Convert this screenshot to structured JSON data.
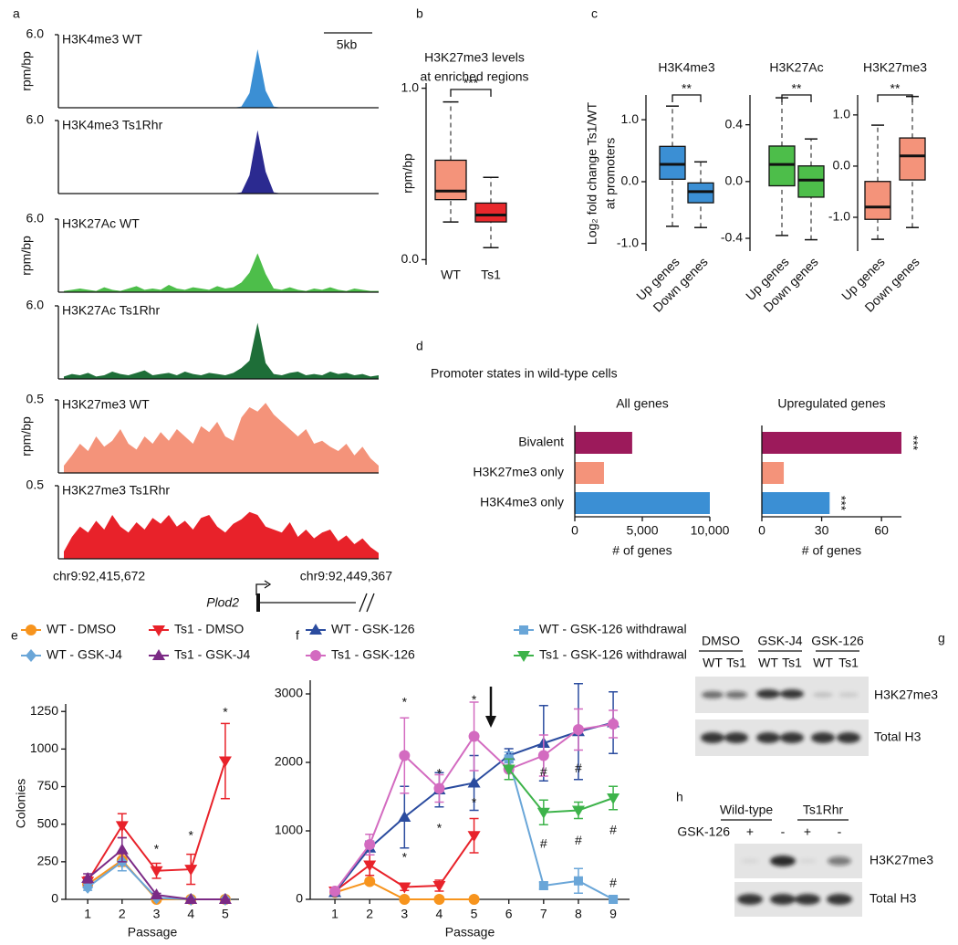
{
  "panel_labels": [
    "a",
    "b",
    "c",
    "d",
    "e",
    "f",
    "g",
    "h"
  ],
  "chart_data": [
    {
      "type": "tracks",
      "scale_bar": "5kb",
      "x_start": "chr9:92,415,672",
      "x_end": "chr9:92,449,367",
      "gene": "Plod2",
      "tracks": [
        {
          "name": "H3K4me3 WT",
          "color": "#3b8fd4",
          "ylabel": "rpm/bp",
          "ylim": [
            0,
            6
          ],
          "yticks": [
            {
              "value": 6,
              "label": "6.0"
            }
          ],
          "values": [
            0,
            0,
            0,
            0,
            0,
            0,
            0,
            0,
            0,
            0,
            0,
            0,
            0,
            0,
            0,
            0,
            0,
            0,
            0,
            0,
            0,
            0,
            0.1,
            1.2,
            4.8,
            1.4,
            0.1,
            0,
            0,
            0,
            0,
            0,
            0,
            0,
            0,
            0,
            0,
            0,
            0,
            0
          ]
        },
        {
          "name": "H3K4me3 Ts1Rhr",
          "color": "#2b2a90",
          "ylim": [
            0,
            6
          ],
          "yticks": [
            {
              "value": 6,
              "label": "6.0"
            }
          ],
          "values": [
            0,
            0,
            0,
            0,
            0,
            0,
            0,
            0,
            0,
            0,
            0,
            0,
            0,
            0,
            0,
            0,
            0,
            0,
            0,
            0,
            0,
            0,
            0.1,
            1.5,
            5.2,
            1.8,
            0.1,
            0,
            0,
            0,
            0,
            0,
            0,
            0,
            0,
            0,
            0,
            0,
            0,
            0
          ]
        },
        {
          "name": "H3K27Ac WT",
          "color": "#4dbe4a",
          "ylabel": "rpm/bp",
          "ylim": [
            0,
            6
          ],
          "yticks": [
            {
              "value": 6,
              "label": "6.0"
            }
          ],
          "values": [
            0.1,
            0.2,
            0.3,
            0.2,
            0.1,
            0.4,
            0.2,
            0.1,
            0.3,
            0.5,
            0.2,
            0.3,
            0.2,
            0.6,
            0.3,
            0.2,
            0.4,
            0.3,
            0.2,
            0.5,
            0.3,
            0.4,
            0.8,
            1.6,
            3.2,
            1.5,
            0.3,
            0.2,
            0.4,
            0.2,
            0.1,
            0.3,
            0.2,
            0.4,
            0.2,
            0.1,
            0.3,
            0.2,
            0.1,
            0.1
          ]
        },
        {
          "name": "H3K27Ac Ts1Rhr",
          "color": "#1e6e38",
          "ylim": [
            0,
            6
          ],
          "yticks": [
            {
              "value": 6,
              "label": "6.0"
            }
          ],
          "values": [
            0.2,
            0.4,
            0.3,
            0.5,
            0.2,
            0.3,
            0.6,
            0.4,
            0.3,
            0.5,
            0.7,
            0.3,
            0.4,
            0.5,
            0.3,
            0.6,
            0.4,
            0.3,
            0.5,
            0.4,
            0.3,
            0.5,
            0.9,
            1.5,
            4.6,
            1.3,
            0.4,
            0.3,
            0.5,
            0.6,
            0.3,
            0.4,
            0.3,
            0.6,
            0.4,
            0.5,
            0.3,
            0.4,
            0.2,
            0.3
          ]
        },
        {
          "name": "H3K27me3 WT",
          "color": "#f4937a",
          "ylabel": "rpm/bp",
          "ylim": [
            0,
            0.5
          ],
          "yticks": [
            0.5
          ],
          "values": [
            0.05,
            0.12,
            0.2,
            0.15,
            0.25,
            0.18,
            0.22,
            0.3,
            0.2,
            0.16,
            0.25,
            0.2,
            0.28,
            0.22,
            0.3,
            0.25,
            0.2,
            0.32,
            0.28,
            0.35,
            0.25,
            0.22,
            0.38,
            0.45,
            0.42,
            0.48,
            0.4,
            0.35,
            0.3,
            0.25,
            0.3,
            0.2,
            0.22,
            0.18,
            0.15,
            0.2,
            0.12,
            0.18,
            0.1,
            0.05
          ]
        },
        {
          "name": "H3K27me3 Ts1Rhr",
          "color": "#e8222a",
          "ylim": [
            0,
            0.5
          ],
          "yticks": [
            0.5
          ],
          "values": [
            0.05,
            0.15,
            0.22,
            0.18,
            0.26,
            0.2,
            0.3,
            0.22,
            0.18,
            0.25,
            0.2,
            0.28,
            0.24,
            0.3,
            0.22,
            0.26,
            0.2,
            0.28,
            0.3,
            0.22,
            0.18,
            0.24,
            0.27,
            0.32,
            0.3,
            0.22,
            0.2,
            0.18,
            0.25,
            0.15,
            0.2,
            0.14,
            0.18,
            0.2,
            0.12,
            0.16,
            0.1,
            0.14,
            0.08,
            0.04
          ]
        }
      ]
    },
    {
      "type": "box",
      "title": [
        "H3K27me3 levels",
        "at enriched regions"
      ],
      "ylabel": "rpm/bp",
      "categories": [
        "WT",
        "Ts1"
      ],
      "colors": [
        "#f4937a",
        "#e8282c"
      ],
      "ylim": [
        -0.03,
        1.03
      ],
      "yticks": [
        {
          "value": 0,
          "label": "0.0"
        },
        {
          "value": 1,
          "label": "1.0"
        }
      ],
      "significance": "***",
      "boxes": [
        {
          "low": 0.22,
          "q1": 0.35,
          "median": 0.4,
          "q3": 0.58,
          "high": 0.92
        },
        {
          "low": 0.07,
          "q1": 0.22,
          "median": 0.26,
          "q3": 0.33,
          "high": 0.48
        }
      ]
    },
    {
      "type": "box_group",
      "ylabel": [
        "Log₂ fold change Ts1/WT",
        "at promoters"
      ],
      "categories": [
        "Up genes",
        "Down genes"
      ],
      "panels": [
        {
          "title": "H3K4me3",
          "color": "#3b8fd4",
          "ylim": [
            -1.12,
            1.4
          ],
          "yticks": [
            {
              "value": -1,
              "label": "-1.0"
            },
            {
              "value": 0,
              "label": "0.0"
            },
            {
              "value": 1,
              "label": "1.0"
            }
          ],
          "significance": "**",
          "boxes": [
            {
              "low": -0.72,
              "q1": 0.04,
              "median": 0.28,
              "q3": 0.57,
              "high": 1.22
            },
            {
              "low": -0.74,
              "q1": -0.34,
              "median": -0.16,
              "q3": -0.02,
              "high": 0.32
            }
          ]
        },
        {
          "title": "H3K27Ac",
          "color": "#4dbe4a",
          "ylim": [
            -0.49,
            0.61
          ],
          "yticks": [
            -0.4,
            {
              "value": 0,
              "label": "0.0"
            },
            0.4
          ],
          "significance": "**",
          "boxes": [
            {
              "low": -0.38,
              "q1": -0.03,
              "median": 0.12,
              "q3": 0.25,
              "high": 0.59
            },
            {
              "low": -0.41,
              "q1": -0.11,
              "median": 0.01,
              "q3": 0.11,
              "high": 0.3
            }
          ]
        },
        {
          "title": "H3K27me3",
          "color": "#f4937a",
          "ylim": [
            -1.66,
            1.39
          ],
          "yticks": [
            {
              "value": -1,
              "label": "-1.0"
            },
            {
              "value": 0,
              "label": "0.0"
            },
            {
              "value": 1,
              "label": "1.0"
            }
          ],
          "significance": "**",
          "boxes": [
            {
              "low": -1.43,
              "q1": -1.04,
              "median": -0.8,
              "q3": -0.3,
              "high": 0.8
            },
            {
              "low": -1.2,
              "q1": -0.27,
              "median": 0.2,
              "q3": 0.55,
              "high": 1.36
            }
          ]
        }
      ]
    },
    {
      "type": "hbar_group",
      "title": "Promoter states in wild-type cells",
      "xlabel": "# of genes",
      "categories": [
        "Bivalent",
        "H3K27me3 only",
        "H3K4me3 only"
      ],
      "colors": [
        "#9c1a5b",
        "#f4937a",
        "#3b8fd4"
      ],
      "panels": [
        {
          "subtitle": "All genes",
          "values": [
            4250,
            2160,
            10000
          ],
          "xlim": [
            0,
            10000
          ],
          "xticks": [
            0,
            {
              "value": 5000,
              "label": "5,000"
            },
            {
              "value": 10000,
              "label": "10,000"
            }
          ]
        },
        {
          "subtitle": "Upregulated genes",
          "values": [
            70,
            11,
            34
          ],
          "xlim": [
            0,
            70
          ],
          "xticks": [
            0,
            30,
            60
          ],
          "significance": [
            "***",
            null,
            "***"
          ]
        }
      ]
    },
    {
      "type": "line",
      "xlabel": "Passage",
      "ylabel": "Colonies",
      "x": [
        1,
        2,
        3,
        4,
        5
      ],
      "xlim": [
        0.36,
        5.4
      ],
      "xticks": [
        1,
        2,
        3,
        4,
        5
      ],
      "ylim": [
        0,
        1300
      ],
      "yticks": [
        0,
        250,
        500,
        750,
        1000,
        1250
      ],
      "series": [
        {
          "name": "WT - DMSO",
          "color": "#f7941d",
          "marker": "circle",
          "values": [
            100,
            260,
            0,
            0,
            0
          ],
          "errors": [
            20,
            40,
            0,
            0,
            0
          ]
        },
        {
          "name": "Ts1 - DMSO",
          "color": "#e8222a",
          "marker": "triangle-down",
          "values": [
            120,
            490,
            190,
            200,
            920
          ],
          "errors": [
            30,
            80,
            50,
            100,
            250
          ]
        },
        {
          "name": "WT - GSK-J4",
          "color": "#6aa6d8",
          "marker": "diamond",
          "values": [
            80,
            250,
            10,
            0,
            0
          ],
          "errors": [
            20,
            60,
            5,
            0,
            0
          ]
        },
        {
          "name": "Ts1 - GSK-J4",
          "color": "#7b2a85",
          "marker": "triangle-up",
          "values": [
            140,
            330,
            30,
            0,
            0
          ],
          "errors": [
            30,
            80,
            10,
            0,
            0
          ]
        }
      ],
      "annotations": [
        {
          "text": "*",
          "x": 3,
          "y": 330
        },
        {
          "text": "*",
          "x": 4,
          "y": 420
        },
        {
          "text": "*",
          "x": 5,
          "y": 1240
        }
      ]
    },
    {
      "type": "line",
      "xlabel": "Passage",
      "x": [
        1,
        2,
        3,
        4,
        5,
        6,
        7,
        8,
        9
      ],
      "xlim": [
        0.29,
        9.47
      ],
      "xticks": [
        1,
        2,
        3,
        4,
        5,
        6,
        7,
        8,
        9
      ],
      "ylim": [
        0,
        3200
      ],
      "yticks": [
        0,
        1000,
        2000,
        3000
      ],
      "series": [
        {
          "color": "#f7941d",
          "marker": "circle",
          "values": [
            100,
            260,
            0,
            0,
            0,
            null,
            null,
            null,
            null
          ],
          "errors": [
            20,
            40,
            0,
            0,
            0,
            null,
            null,
            null,
            null
          ]
        },
        {
          "color": "#e8222a",
          "marker": "triangle-down",
          "values": [
            120,
            500,
            180,
            200,
            930,
            null,
            null,
            null,
            null
          ],
          "errors": [
            30,
            150,
            50,
            80,
            250,
            null,
            null,
            null,
            null
          ]
        },
        {
          "name": "WT - GSK-126",
          "color": "#2b4c9f",
          "marker": "triangle-up",
          "values": [
            100,
            750,
            1200,
            1600,
            1700,
            2100,
            2280,
            2450,
            2580
          ],
          "errors": [
            20,
            100,
            450,
            250,
            400,
            100,
            550,
            700,
            450
          ]
        },
        {
          "name": "WT - GSK-126 withdrawal",
          "color": "#6aa6d8",
          "marker": "square",
          "values": [
            null,
            null,
            null,
            null,
            null,
            2050,
            200,
            270,
            0
          ],
          "errors": [
            null,
            null,
            null,
            null,
            null,
            100,
            50,
            180,
            30
          ]
        },
        {
          "name": "Ts1 - GSK-126",
          "color": "#d36bc0",
          "marker": "circle",
          "values": [
            120,
            800,
            2100,
            1620,
            2380,
            1900,
            2100,
            2480,
            2560
          ],
          "errors": [
            20,
            150,
            550,
            200,
            500,
            150,
            300,
            300,
            200
          ]
        },
        {
          "name": "Ts1 - GSK-126 withdrawal",
          "color": "#3db34a",
          "marker": "triangle-down",
          "values": [
            null,
            null,
            null,
            null,
            null,
            1900,
            1270,
            1300,
            1480
          ],
          "errors": [
            null,
            null,
            null,
            null,
            null,
            150,
            180,
            120,
            170
          ]
        }
      ],
      "annotations": [
        {
          "text": "*",
          "x": 3,
          "y": 2870
        },
        {
          "text": "*",
          "x": 3,
          "y": 600
        },
        {
          "text": "*",
          "x": 4,
          "y": 1830
        },
        {
          "text": "*",
          "x": 4,
          "y": 1030
        },
        {
          "text": "*",
          "x": 5,
          "y": 2900
        },
        {
          "text": "*",
          "x": 5,
          "y": 1400
        },
        {
          "text": "#",
          "x": 7,
          "y": 1850
        },
        {
          "text": "#",
          "x": 7,
          "y": 800
        },
        {
          "text": "#",
          "x": 8,
          "y": 1900
        },
        {
          "text": "#",
          "x": 8,
          "y": 850
        },
        {
          "text": "#",
          "x": 9,
          "y": 1000
        },
        {
          "text": "#",
          "x": 9,
          "y": 230
        }
      ]
    }
  ],
  "blots": {
    "g": {
      "groups": [
        "DMSO",
        "GSK-J4",
        "GSK-126"
      ],
      "lanes": [
        "WT",
        "Ts1",
        "WT",
        "Ts1",
        "WT",
        "Ts1"
      ],
      "rows": [
        "H3K27me3",
        "Total H3"
      ]
    },
    "h": {
      "groups": [
        "Wild-type",
        "Ts1Rhr"
      ],
      "treatment": "GSK-126",
      "lanes": [
        "+",
        "-",
        "+",
        "-"
      ],
      "rows": [
        "H3K27me3",
        "Total H3"
      ]
    }
  }
}
